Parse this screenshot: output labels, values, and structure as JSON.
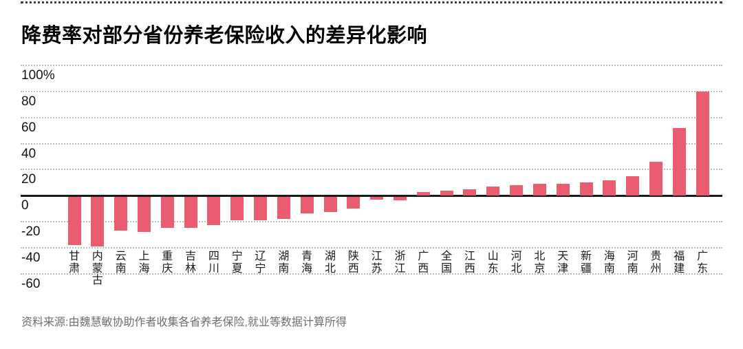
{
  "header": {
    "title": "降费率对部分省份养老保险收入的差异化影响"
  },
  "chart_data": {
    "type": "bar",
    "title": "降费率对部分省份养老保险收入的差异化影响",
    "unit": "%",
    "categories": [
      "甘肃",
      "内蒙古",
      "云南",
      "上海",
      "重庆",
      "吉林",
      "四川",
      "宁夏",
      "辽宁",
      "湖南",
      "青海",
      "湖北",
      "陕西",
      "江苏",
      "浙江",
      "广西",
      "全国",
      "江西",
      "山东",
      "河北",
      "北京",
      "天津",
      "新疆",
      "海南",
      "河南",
      "贵州",
      "福建",
      "广东"
    ],
    "values": [
      -37,
      -38,
      -26,
      -27,
      -24,
      -24,
      -22,
      -18,
      -18,
      -17,
      -13,
      -12,
      -9,
      -2,
      -3,
      3,
      4,
      5,
      7,
      8,
      9,
      9,
      10,
      12,
      15,
      26,
      52,
      80
    ],
    "y_ticks": [
      100,
      80,
      60,
      40,
      20,
      0,
      -20,
      -40,
      -60
    ],
    "y_tick_labels": [
      "100%",
      "80",
      "60",
      "40",
      "20",
      "0",
      "-20",
      "-40",
      "-60"
    ],
    "ylim": [
      -60,
      100
    ],
    "grid": "horizontal-dotted",
    "legend": "none",
    "bar_color": "#ea5c6f",
    "zero_line_color": "#1a1a1a",
    "gridline_color": "#bcbcbc"
  },
  "footer": {
    "source": "资料来源:由魏慧敏协助作者收集各省养老保险,就业等数据计算所得"
  }
}
